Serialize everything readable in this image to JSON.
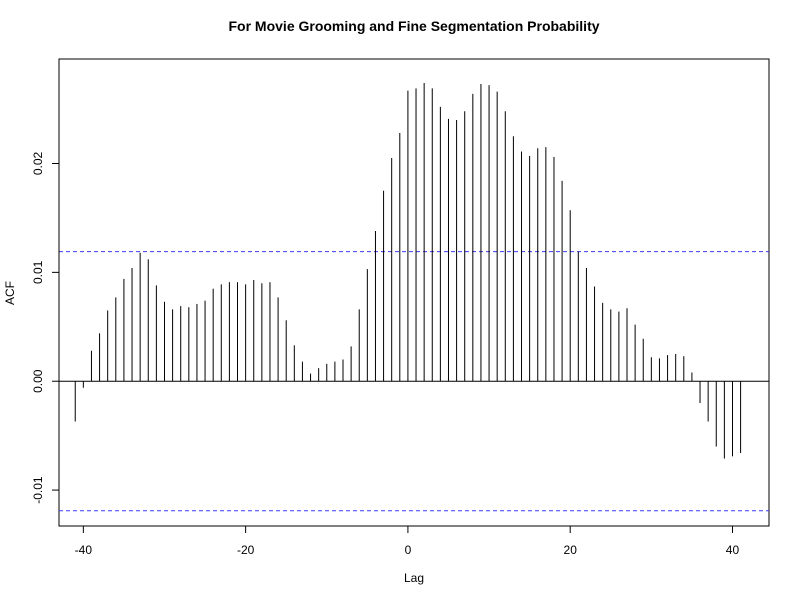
{
  "chart_data": {
    "type": "bar",
    "title": "For Movie Grooming and Fine Segmentation Probability",
    "xlabel": "Lag",
    "ylabel": "ACF",
    "xlim": [
      -43,
      44.5
    ],
    "ylim": [
      -0.0133,
      0.0296
    ],
    "x_ticks": [
      -40,
      -20,
      0,
      20,
      40
    ],
    "y_ticks": [
      -0.01,
      0.0,
      0.01,
      0.02
    ],
    "y_tick_labels": [
      "-0.01",
      "0.00",
      "0.01",
      "0.02"
    ],
    "confidence_band": 0.0119,
    "confidence_band_color": "#3b3bff",
    "bar_color": "#000000",
    "grid": false,
    "series": [
      {
        "x": [
          -41,
          -40,
          -39,
          -38,
          -37,
          -36,
          -35,
          -34,
          -33,
          -32,
          -31,
          -30,
          -29,
          -28,
          -27,
          -26,
          -25,
          -24,
          -23,
          -22,
          -21,
          -20,
          -19,
          -18,
          -17,
          -16,
          -15,
          -14,
          -13,
          -12,
          -11,
          -10,
          -9,
          -8,
          -7,
          -6,
          -5,
          -4,
          -3,
          -2,
          -1,
          0,
          1,
          2,
          3,
          4,
          5,
          6,
          7,
          8,
          9,
          10,
          11,
          12,
          13,
          14,
          15,
          16,
          17,
          18,
          19,
          20,
          21,
          22,
          23,
          24,
          25,
          26,
          27,
          28,
          29,
          30,
          31,
          32,
          33,
          34,
          35,
          36,
          37,
          38,
          39,
          40,
          41
        ],
        "values": [
          -0.0037,
          -0.0006,
          0.0028,
          0.0044,
          0.0065,
          0.0077,
          0.0094,
          0.0104,
          0.0118,
          0.0112,
          0.0088,
          0.0073,
          0.0066,
          0.0069,
          0.0068,
          0.0071,
          0.0074,
          0.0085,
          0.0089,
          0.0091,
          0.0091,
          0.0089,
          0.0093,
          0.009,
          0.0091,
          0.0077,
          0.0056,
          0.0033,
          0.0018,
          0.0007,
          0.0012,
          0.0016,
          0.0018,
          0.002,
          0.0032,
          0.0066,
          0.0103,
          0.0138,
          0.0175,
          0.0205,
          0.0228,
          0.0267,
          0.0269,
          0.0274,
          0.0269,
          0.0252,
          0.0241,
          0.024,
          0.0248,
          0.0264,
          0.0273,
          0.0272,
          0.0266,
          0.0248,
          0.0225,
          0.0211,
          0.0207,
          0.0214,
          0.0215,
          0.0206,
          0.0184,
          0.0157,
          0.0119,
          0.0104,
          0.0087,
          0.0072,
          0.0066,
          0.0064,
          0.0067,
          0.0052,
          0.0039,
          0.0022,
          0.0021,
          0.0024,
          0.0025,
          0.0023,
          0.0008,
          -0.002,
          -0.0037,
          -0.006,
          -0.0071,
          -0.0069,
          -0.0066
        ]
      }
    ]
  }
}
